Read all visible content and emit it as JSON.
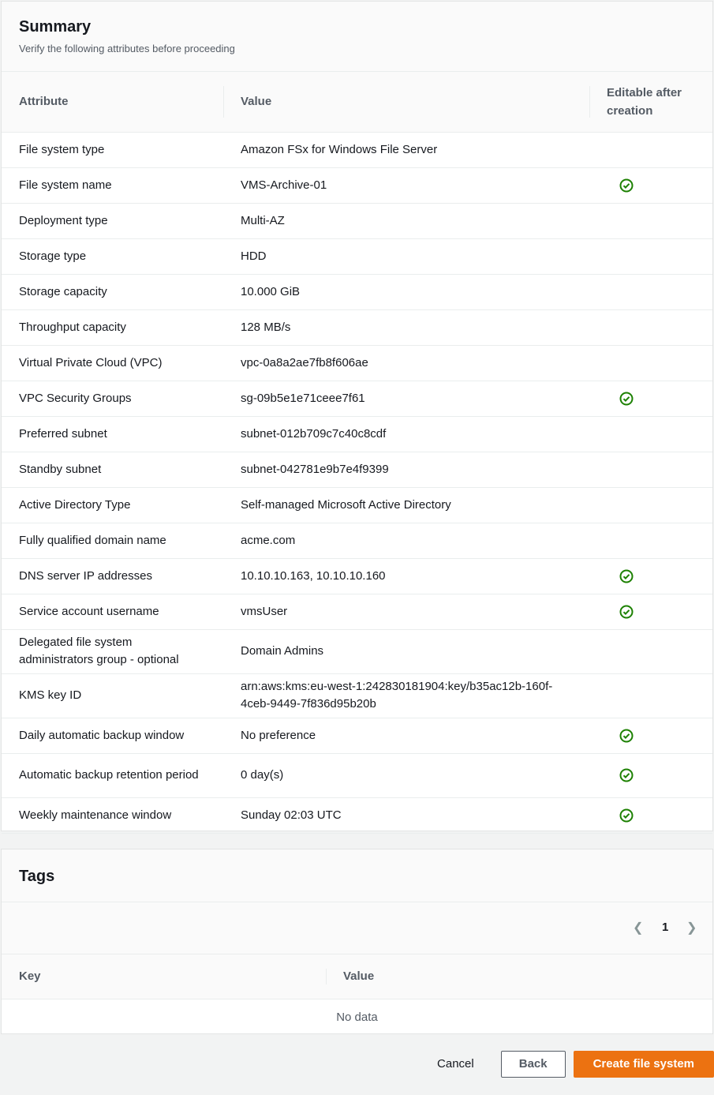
{
  "summary": {
    "title": "Summary",
    "subtitle": "Verify the following attributes before proceeding",
    "columns": [
      "Attribute",
      "Value",
      "Editable after creation"
    ],
    "rows": [
      {
        "attribute": "File system type",
        "value": "Amazon FSx for Windows File Server",
        "editable": false
      },
      {
        "attribute": "File system name",
        "value": "VMS-Archive-01",
        "editable": true
      },
      {
        "attribute": "Deployment type",
        "value": "Multi-AZ",
        "editable": false
      },
      {
        "attribute": "Storage type",
        "value": "HDD",
        "editable": false
      },
      {
        "attribute": "Storage capacity",
        "value": "10.000 GiB",
        "editable": false
      },
      {
        "attribute": "Throughput capacity",
        "value": "128 MB/s",
        "editable": false
      },
      {
        "attribute": "Virtual Private Cloud (VPC)",
        "value": "vpc-0a8a2ae7fb8f606ae",
        "editable": false
      },
      {
        "attribute": "VPC Security Groups",
        "value": "sg-09b5e1e71ceee7f61",
        "editable": true
      },
      {
        "attribute": "Preferred subnet",
        "value": "subnet-012b709c7c40c8cdf",
        "editable": false
      },
      {
        "attribute": "Standby subnet",
        "value": "subnet-042781e9b7e4f9399",
        "editable": false
      },
      {
        "attribute": "Active Directory Type",
        "value": "Self-managed Microsoft Active Directory",
        "editable": false
      },
      {
        "attribute": "Fully qualified domain name",
        "value": "acme.com",
        "editable": false
      },
      {
        "attribute": "DNS server IP addresses",
        "value": "10.10.10.163, 10.10.10.160",
        "editable": true
      },
      {
        "attribute": "Service account username",
        "value": "vmsUser",
        "editable": true
      },
      {
        "attribute": "Delegated file system administrators group - optional",
        "value": "Domain Admins",
        "editable": false,
        "tall": true
      },
      {
        "attribute": "KMS key ID",
        "value": "arn:aws:kms:eu-west-1:242830181904:key/b35ac12b-160f-4ceb-9449-7f836d95b20b",
        "editable": false,
        "tall": true
      },
      {
        "attribute": "Daily automatic backup window",
        "value": "No preference",
        "editable": true
      },
      {
        "attribute": "Automatic backup retention period",
        "value": "0 day(s)",
        "editable": true,
        "tall": true
      },
      {
        "attribute": "Weekly maintenance window",
        "value": "Sunday 02:03 UTC",
        "editable": true
      }
    ]
  },
  "tags": {
    "title": "Tags",
    "page": "1",
    "columns": [
      "Key",
      "Value"
    ],
    "empty": "No data"
  },
  "actions": {
    "cancel": "Cancel",
    "back": "Back",
    "create": "Create file system"
  },
  "colors": {
    "accent": "#ec7211",
    "check": "#1d8102"
  }
}
